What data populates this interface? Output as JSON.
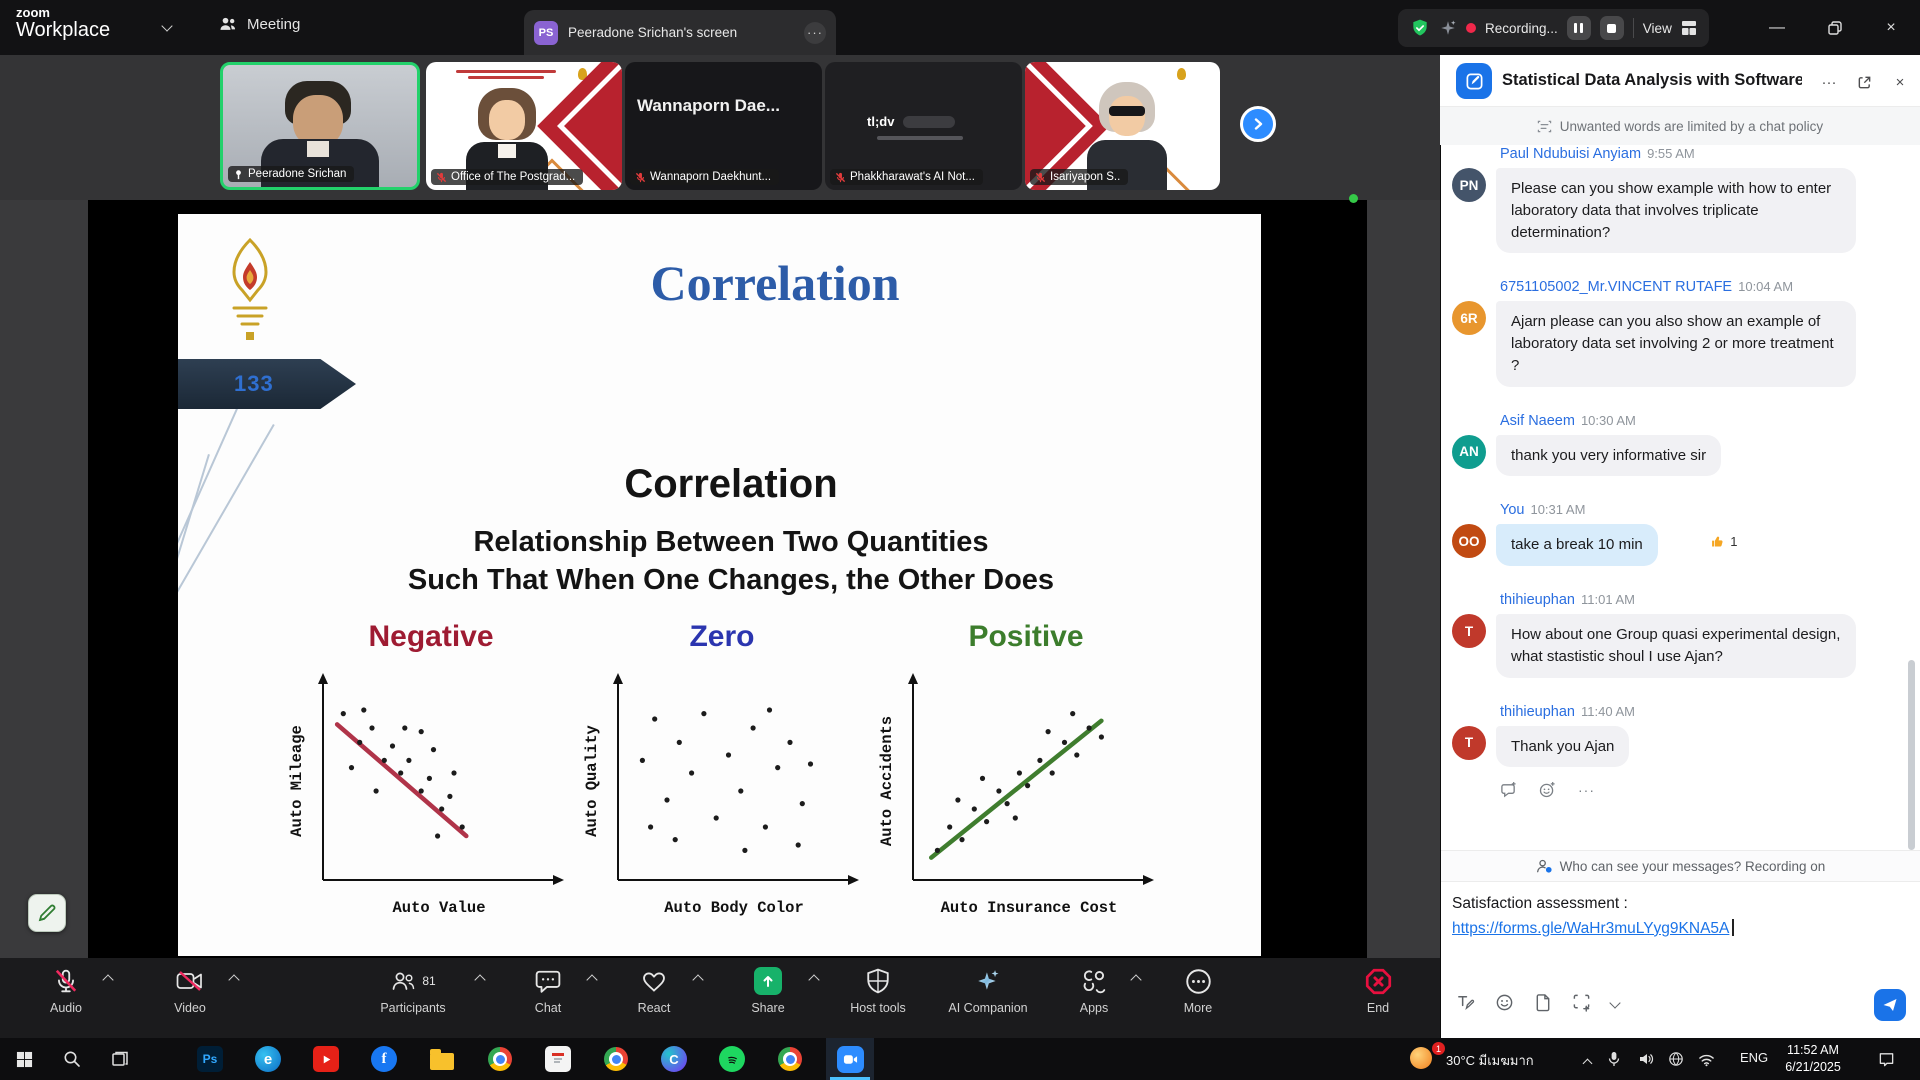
{
  "titlebar": {
    "brand_top": "zoom",
    "brand_bottom": "Workplace",
    "meeting_tab_label": "Meeting",
    "screen_tab_badge": "PS",
    "screen_tab_label": "Peeradone Srichan's screen",
    "recording_label": "Recording...",
    "view_label": "View"
  },
  "video_strip": {
    "participants": [
      {
        "name": "Peeradone Srichan",
        "pinned": true
      },
      {
        "name": "Office of The Postgrad...",
        "muted": true
      },
      {
        "name": "Wannaporn Daekhunt...",
        "muted": true,
        "screen_text": "Wannaporn Dae..."
      },
      {
        "name": "Phakkharawat's AI Not...",
        "muted": true,
        "screen_logo": "tl;dv"
      },
      {
        "name": "Isariyapon S..",
        "muted": true
      }
    ]
  },
  "slide": {
    "page_number": "133",
    "title": "Correlation",
    "heading": "Correlation",
    "subtitle1": "Relationship Between Two Quantities",
    "subtitle2": "Such That When One Changes, the Other Does",
    "columns": [
      {
        "label": "Negative",
        "color": "#9e1b32",
        "ylabel": "Auto Mileage",
        "xlabel": "Auto Value",
        "line": [
          [
            3,
            82
          ],
          [
            66,
            20
          ]
        ],
        "line_color": "#b03449",
        "points": [
          [
            6,
            88
          ],
          [
            14,
            72
          ],
          [
            20,
            80
          ],
          [
            26,
            62
          ],
          [
            30,
            70
          ],
          [
            34,
            55
          ],
          [
            38,
            62
          ],
          [
            44,
            45
          ],
          [
            48,
            52
          ],
          [
            54,
            35
          ],
          [
            58,
            42
          ],
          [
            64,
            25
          ],
          [
            10,
            58
          ],
          [
            22,
            45
          ],
          [
            36,
            80
          ],
          [
            50,
            68
          ],
          [
            60,
            55
          ],
          [
            44,
            78
          ],
          [
            16,
            90
          ],
          [
            52,
            20
          ]
        ]
      },
      {
        "label": "Zero",
        "color": "#2b35af",
        "ylabel": "Auto Quality",
        "xlabel": "Auto Body Color",
        "line": null,
        "line_color": null,
        "points": [
          [
            8,
            62
          ],
          [
            14,
            85
          ],
          [
            20,
            40
          ],
          [
            26,
            72
          ],
          [
            32,
            55
          ],
          [
            38,
            88
          ],
          [
            44,
            30
          ],
          [
            50,
            65
          ],
          [
            56,
            45
          ],
          [
            62,
            80
          ],
          [
            68,
            25
          ],
          [
            74,
            58
          ],
          [
            80,
            72
          ],
          [
            86,
            38
          ],
          [
            90,
            60
          ],
          [
            24,
            18
          ],
          [
            58,
            12
          ],
          [
            70,
            90
          ],
          [
            12,
            25
          ],
          [
            84,
            15
          ]
        ]
      },
      {
        "label": "Positive",
        "color": "#3c7d2c",
        "ylabel": "Auto Accidents",
        "xlabel": "Auto Insurance Cost",
        "line": [
          [
            5,
            8
          ],
          [
            88,
            84
          ]
        ],
        "line_color": "#3f7d2e",
        "points": [
          [
            8,
            12
          ],
          [
            14,
            25
          ],
          [
            20,
            18
          ],
          [
            26,
            35
          ],
          [
            32,
            28
          ],
          [
            38,
            45
          ],
          [
            42,
            38
          ],
          [
            48,
            55
          ],
          [
            52,
            48
          ],
          [
            58,
            62
          ],
          [
            64,
            55
          ],
          [
            70,
            72
          ],
          [
            76,
            65
          ],
          [
            82,
            80
          ],
          [
            88,
            75
          ],
          [
            30,
            52
          ],
          [
            46,
            30
          ],
          [
            62,
            78
          ],
          [
            74,
            88
          ],
          [
            18,
            40
          ]
        ]
      }
    ]
  },
  "toolbar": {
    "audio": "Audio",
    "video": "Video",
    "participants": "Participants",
    "participants_count": "81",
    "chat": "Chat",
    "react": "React",
    "share": "Share",
    "host_tools": "Host tools",
    "ai_companion": "AI Companion",
    "apps": "Apps",
    "more": "More",
    "end": "End"
  },
  "chat": {
    "title": "Statistical Data Analysis with Software ...",
    "policy_notice": "Unwanted words are limited by a chat policy",
    "messages": [
      {
        "initials": "PN",
        "avatar_color": "#44546a",
        "name": "Paul Ndubuisi Anyiam",
        "time": "9:55 AM",
        "text": "Please can you show example with how to enter  laboratory data that involves triplicate determination?"
      },
      {
        "initials": "6R",
        "avatar_color": "#e8962e",
        "name": "6751105002_Mr.VINCENT RUTAFE",
        "time": "10:04 AM",
        "text": "Ajarn please can you also show an example of  laboratory data set involving 2 or more treatment ?"
      },
      {
        "initials": "AN",
        "avatar_color": "#0f9d8f",
        "name": "Asif Naeem",
        "time": "10:30 AM",
        "text": "thank you very informative sir"
      },
      {
        "initials": "OO",
        "avatar_color": "#c14a12",
        "name": "You",
        "time": "10:31 AM",
        "text": "take a break 10 min",
        "reaction_count": "1"
      },
      {
        "initials": "T",
        "avatar_color": "#c0392b",
        "name": "thihieuphan",
        "time": "11:01 AM",
        "text": "How about one Group quasi experimental design, what stastistic shoul I use Ajan?"
      },
      {
        "initials": "T",
        "avatar_color": "#c0392b",
        "name": "thihieuphan",
        "time": "11:40 AM",
        "text": "Thank you Ajan"
      }
    ],
    "who_can_see": "Who can see your messages? Recording on",
    "compose_line1": "Satisfaction assessment :",
    "compose_link": "https://forms.gle/WaHr3muLYyg9KNA5A"
  },
  "taskbar": {
    "photoshop_label": "Ps",
    "edge_label": "e",
    "facebook_label": "f",
    "canva_label": "C",
    "zoom_label": "zoom",
    "badge_count": "1",
    "weather_temp": "30°C",
    "weather_desc": "มีเมฆมาก",
    "language": "ENG",
    "time": "11:52 AM",
    "date": "6/21/2025"
  }
}
